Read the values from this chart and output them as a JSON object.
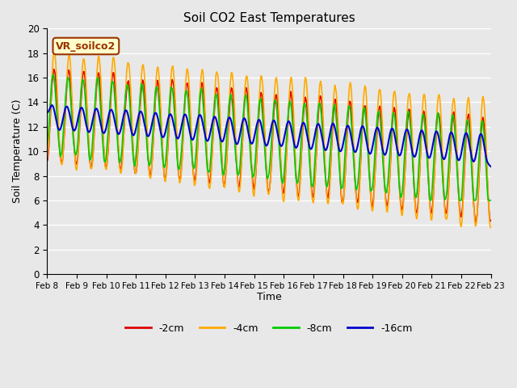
{
  "title": "Soil CO2 East Temperatures",
  "xlabel": "Time",
  "ylabel": "Soil Temperature (C)",
  "ylim": [
    0,
    20
  ],
  "background_color": "#e8e8e8",
  "annotation_text": "VR_soilco2",
  "annotation_bg": "#ffffcc",
  "annotation_border": "#993300",
  "xtick_labels": [
    "Feb 8",
    "Feb 9",
    "Feb 10",
    "Feb 11",
    "Feb 12",
    "Feb 13",
    "Feb 14",
    "Feb 15",
    "Feb 16",
    "Feb 17",
    "Feb 18",
    "Feb 19",
    "Feb 20",
    "Feb 21",
    "Feb 22",
    "Feb 23"
  ],
  "legend_labels": [
    "-2cm",
    "-4cm",
    "-8cm",
    "-16cm"
  ],
  "legend_colors": [
    "#dd0000",
    "#ffaa00",
    "#00cc00",
    "#0000cc"
  ]
}
